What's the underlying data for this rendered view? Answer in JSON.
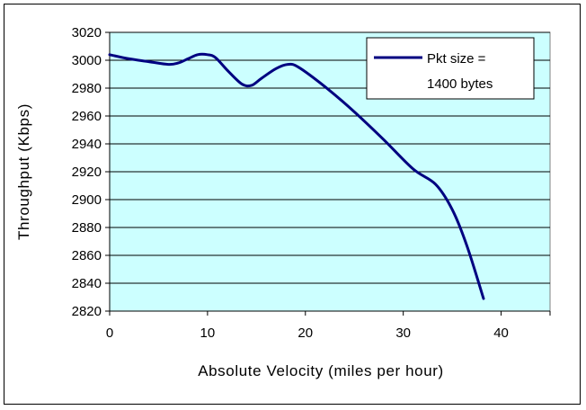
{
  "chart_data": {
    "type": "line",
    "xlabel": "Absolute Velocity (miles per hour)",
    "ylabel": "Throughput (Kbps)",
    "xlim": [
      0,
      45
    ],
    "ylim": [
      2820,
      3020
    ],
    "xticks": [
      "0",
      "10",
      "20",
      "30",
      "40"
    ],
    "yticks": [
      "2820",
      "2840",
      "2860",
      "2880",
      "2900",
      "2920",
      "2940",
      "2960",
      "2980",
      "3000",
      "3020"
    ],
    "grid": "horizontal",
    "legend_position": "top-right",
    "plot_background": "#ccffff",
    "series": [
      {
        "name_line1": "Pkt size =",
        "name_line2": "1400 bytes",
        "color": "#000080",
        "x": [
          0,
          2,
          4,
          6,
          7,
          8,
          9,
          10,
          10.8,
          12,
          13.5,
          14.5,
          15.5,
          17,
          18.2,
          19.3,
          22,
          25,
          28,
          31,
          33.3,
          35,
          36.5,
          38.2
        ],
        "y": [
          3004,
          3001,
          2999,
          2997,
          2998,
          3001,
          3004,
          3004,
          3002,
          2993,
          2983,
          2982,
          2987,
          2994,
          2997,
          2995,
          2981,
          2963,
          2943,
          2922,
          2911,
          2893,
          2867,
          2829
        ]
      }
    ]
  }
}
